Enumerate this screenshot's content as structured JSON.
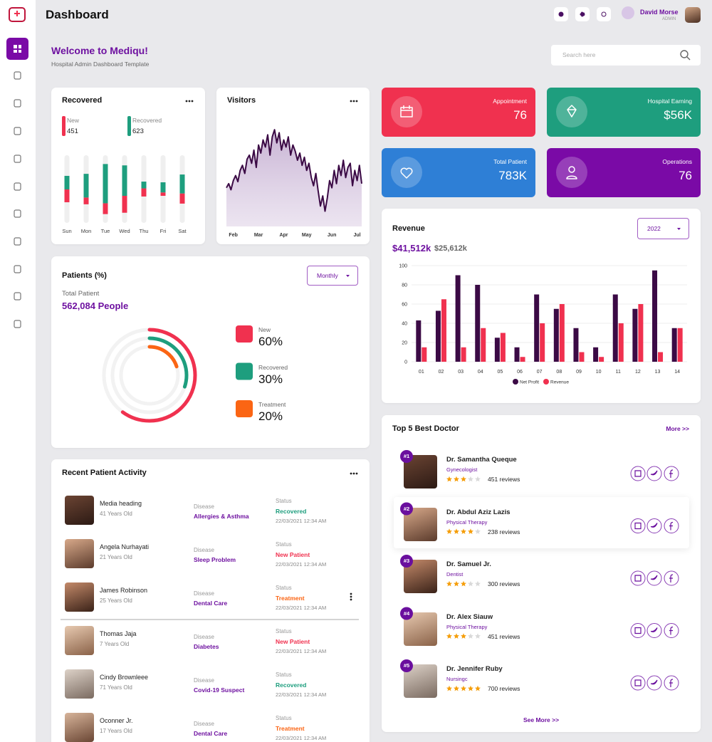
{
  "header": {
    "title": "Dashboard",
    "user_name": "David Morse",
    "user_role": "ADMIN"
  },
  "welcome": {
    "title": "Welcome to Mediqu!",
    "subtitle": "Hospital Admin Dashboard Template",
    "search_placeholder": "Search here"
  },
  "stats": [
    {
      "label": "Appointment",
      "value": "76",
      "color": "#f0314f"
    },
    {
      "label": "Hospital Earning",
      "value": "$56K",
      "color": "#1e9e7e"
    },
    {
      "label": "Total Patient",
      "value": "783K",
      "color": "#2e7fd6"
    },
    {
      "label": "Operations",
      "value": "76",
      "color": "#7a0aa6"
    }
  ],
  "chart_data": [
    {
      "type": "stacked_bar",
      "title": "Recovered",
      "categories": [
        "Sun",
        "Mon",
        "Tue",
        "Wed",
        "Thu",
        "Fri",
        "Sat"
      ],
      "series": [
        {
          "name": "New",
          "total": 451,
          "color": "#f0314f",
          "values": [
            19,
            10,
            16,
            25,
            12,
            5,
            15
          ]
        },
        {
          "name": "Recovered",
          "total": 623,
          "color": "#1e9e7e",
          "values": [
            20,
            35,
            58,
            45,
            10,
            15,
            28
          ]
        }
      ],
      "ylim": [
        0,
        100
      ]
    },
    {
      "type": "area",
      "title": "Visitors",
      "color": "#3b0a45",
      "values": [
        38,
        42,
        36,
        45,
        50,
        44,
        55,
        60,
        52,
        66,
        70,
        62,
        75,
        58,
        80,
        72,
        85,
        78,
        90,
        70,
        88,
        95,
        82,
        92,
        75,
        85,
        78,
        88,
        70,
        80,
        74,
        65,
        72,
        60,
        68,
        55,
        62,
        48,
        40,
        52,
        35,
        20,
        30,
        15,
        28,
        45,
        38,
        55,
        42,
        60,
        50,
        65,
        48,
        58,
        62,
        40,
        55,
        45,
        60,
        42
      ],
      "xlim": [
        0,
        59
      ],
      "xticks": [
        {
          "value": 3,
          "label": "Feb"
        },
        {
          "value": 14,
          "label": "Mar"
        },
        {
          "value": 25,
          "label": "Apr"
        },
        {
          "value": 35,
          "label": "May"
        },
        {
          "value": 46,
          "label": "Jun"
        },
        {
          "value": 57,
          "label": "Jul"
        }
      ],
      "ylim": [
        0,
        100
      ]
    },
    {
      "type": "ring",
      "title": "Patients (%)",
      "filter": "Monthly",
      "total_label": "Total Patient",
      "total_value": "562,084 People",
      "categories": [
        "New",
        "Recovered",
        "Treatment"
      ],
      "values": [
        60,
        30,
        20
      ],
      "value_labels": [
        "60%",
        "30%",
        "20%"
      ],
      "colors": [
        "#f0314f",
        "#1e9e7e",
        "#fb6514"
      ]
    },
    {
      "type": "grouped_bar",
      "title": "Revenue",
      "filter": "2022",
      "totals": [
        "$41,512k",
        "$25,612k"
      ],
      "categories": [
        "01",
        "02",
        "03",
        "04",
        "05",
        "06",
        "07",
        "08",
        "09",
        "10",
        "11",
        "12",
        "13",
        "14"
      ],
      "series": [
        {
          "name": "Net Profit",
          "color": "#3b0a45",
          "values": [
            43,
            53,
            90,
            80,
            25,
            15,
            70,
            55,
            35,
            15,
            70,
            55,
            95,
            35
          ]
        },
        {
          "name": "Revenue",
          "color": "#f0314f",
          "values": [
            15,
            65,
            15,
            35,
            30,
            5,
            40,
            60,
            10,
            5,
            40,
            60,
            10,
            35
          ]
        }
      ],
      "ylim": [
        0,
        100
      ],
      "yticks": [
        0,
        20,
        40,
        60,
        80,
        100
      ],
      "grid": true
    }
  ],
  "doctors": {
    "title": "Top 5 Best Doctor",
    "more": "More >>",
    "see_more": "See More >>",
    "list": [
      {
        "rank": "#1",
        "name": "Dr. Samantha Queque",
        "specialty": "Gynecologist",
        "rating": 3,
        "reviews": "451 reviews"
      },
      {
        "rank": "#2",
        "name": "Dr. Abdul Aziz Lazis",
        "specialty": "Physical Therapy",
        "rating": 4,
        "reviews": "238 reviews"
      },
      {
        "rank": "#3",
        "name": "Dr. Samuel Jr.",
        "specialty": "Dentist",
        "rating": 3,
        "reviews": "300 reviews"
      },
      {
        "rank": "#4",
        "name": "Dr. Alex Siauw",
        "specialty": "Physical Therapy",
        "rating": 3,
        "reviews": "451 reviews"
      },
      {
        "rank": "#5",
        "name": "Dr. Jennifer Ruby",
        "specialty": "Nursingc",
        "rating": 5,
        "reviews": "700 reviews"
      }
    ]
  },
  "activity": {
    "title": "Recent Patient Activity",
    "rows": [
      {
        "name": "Media heading",
        "age": "41 Years Old",
        "disease_label": "Disease",
        "disease": "Allergies & Asthma",
        "status_label": "Status",
        "status": "Recovered",
        "status_color": "#1e9e7e",
        "date": "22/03/2021 12:34 AM"
      },
      {
        "name": "Angela Nurhayati",
        "age": "21 Years Old",
        "disease_label": "Disease",
        "disease": "Sleep Problem",
        "status_label": "Status",
        "status": "New Patient",
        "status_color": "#f0314f",
        "date": "22/03/2021 12:34 AM"
      },
      {
        "name": "James Robinson",
        "age": "25 Years Old",
        "disease_label": "Disease",
        "disease": "Dental Care",
        "status_label": "Status",
        "status": "Treatment",
        "status_color": "#fb6514",
        "date": "22/03/2021 12:34 AM"
      },
      {
        "name": "Thomas Jaja",
        "age": "7 Years Old",
        "disease_label": "Disease",
        "disease": "Diabetes",
        "status_label": "Status",
        "status": "New Patient",
        "status_color": "#f0314f",
        "date": "22/03/2021 12:34 AM"
      },
      {
        "name": "Cindy Brownleee",
        "age": "71 Years Old",
        "disease_label": "Disease",
        "disease": "Covid-19 Suspect",
        "status_label": "Status",
        "status": "Recovered",
        "status_color": "#1e9e7e",
        "date": "22/03/2021 12:34 AM"
      },
      {
        "name": "Oconner Jr.",
        "age": "17 Years Old",
        "disease_label": "Disease",
        "disease": "Dental Care",
        "status_label": "Status",
        "status": "Treatment",
        "status_color": "#fb6514",
        "date": "22/03/2021 12:34 AM"
      }
    ]
  }
}
